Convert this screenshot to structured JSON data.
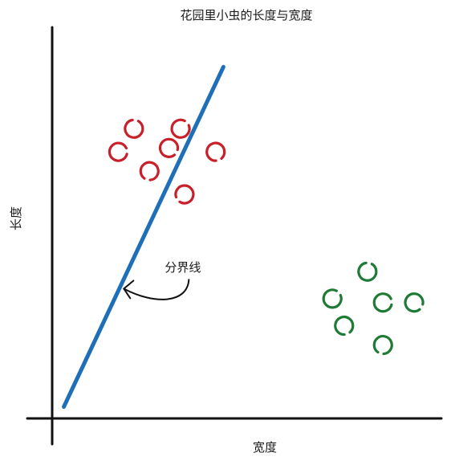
{
  "chart_data": {
    "type": "scatter",
    "title": "花园里小虫的长度与宽度",
    "xlabel": "宽度",
    "ylabel": "长度",
    "xlim": [
      0,
      100
    ],
    "ylim": [
      0,
      100
    ],
    "grid": false,
    "legend": "none",
    "series": [
      {
        "color": "#c8202a",
        "points": [
          [
            21,
            75
          ],
          [
            33,
            75
          ],
          [
            17,
            69
          ],
          [
            30,
            70
          ],
          [
            42,
            69
          ],
          [
            25,
            64
          ],
          [
            34,
            58
          ]
        ]
      },
      {
        "color": "#1f7a36",
        "points": [
          [
            81,
            38
          ],
          [
            72,
            31
          ],
          [
            85,
            30
          ],
          [
            93,
            30
          ],
          [
            75,
            24
          ],
          [
            85,
            19
          ]
        ]
      }
    ],
    "boundary": {
      "color": "#1f6fb8",
      "from": [
        3,
        3
      ],
      "to": [
        44,
        91
      ]
    },
    "annotations": [
      {
        "text": "分界线",
        "x": 31,
        "y": 38,
        "target": [
          18,
          34
        ]
      }
    ]
  }
}
